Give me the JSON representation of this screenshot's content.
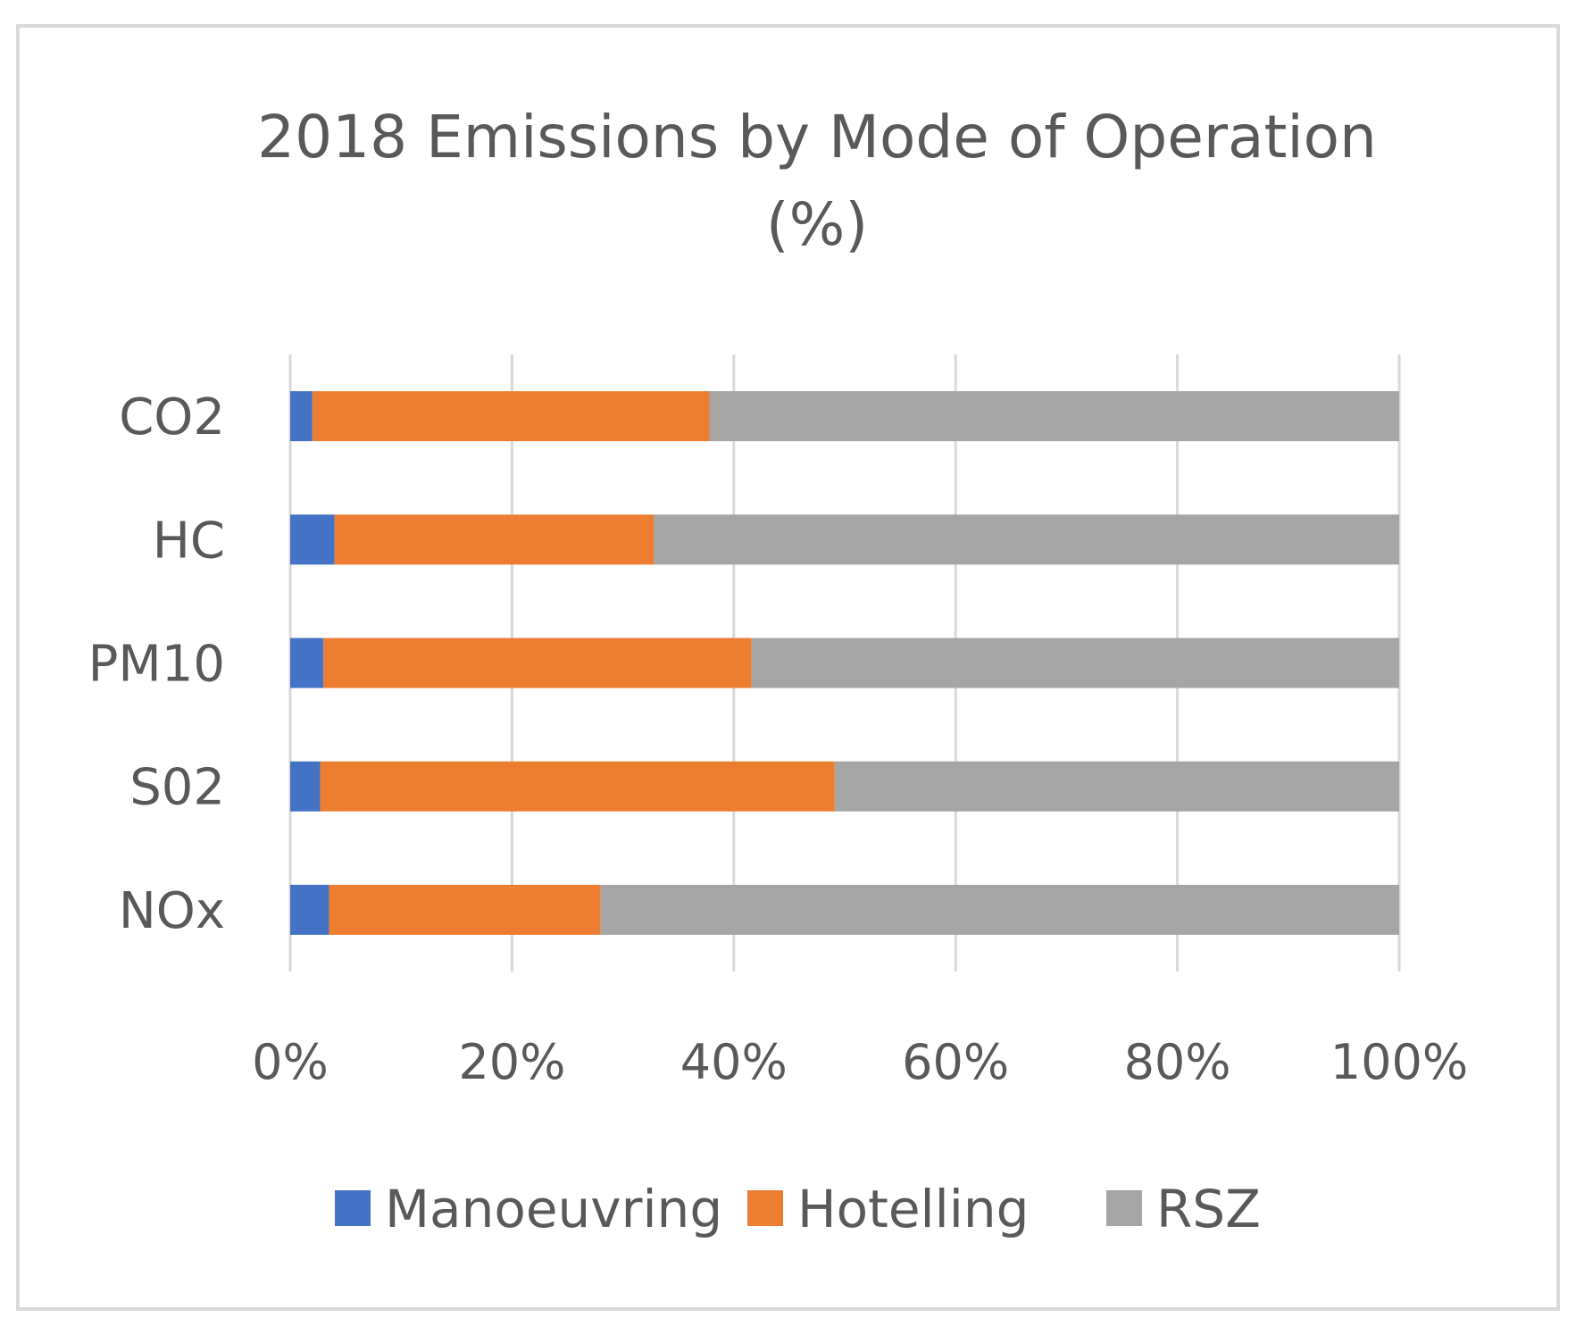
{
  "chart_data": {
    "type": "bar",
    "orientation": "horizontal",
    "stacked": "percent",
    "title": "2018 Emissions by Mode of Operation",
    "title_line2": "(%)",
    "categories": [
      "CO2",
      "HC",
      "PM10",
      "S02",
      "NOx"
    ],
    "series": [
      {
        "name": "Manoeuvring",
        "color": "#4472c4",
        "values": [
          2.0,
          4.0,
          3.0,
          2.7,
          3.5
        ]
      },
      {
        "name": "Hotelling",
        "color": "#ed7d31",
        "values": [
          35.8,
          28.8,
          38.6,
          46.4,
          24.5
        ]
      },
      {
        "name": "RSZ",
        "color": "#a5a5a5",
        "values": [
          62.2,
          67.2,
          58.4,
          50.9,
          72.0
        ]
      }
    ],
    "x_ticks": [
      "0%",
      "20%",
      "40%",
      "60%",
      "80%",
      "100%"
    ],
    "xlim": [
      0,
      100
    ],
    "xlabel": "",
    "ylabel": "",
    "grid": true,
    "legend_position": "bottom"
  }
}
